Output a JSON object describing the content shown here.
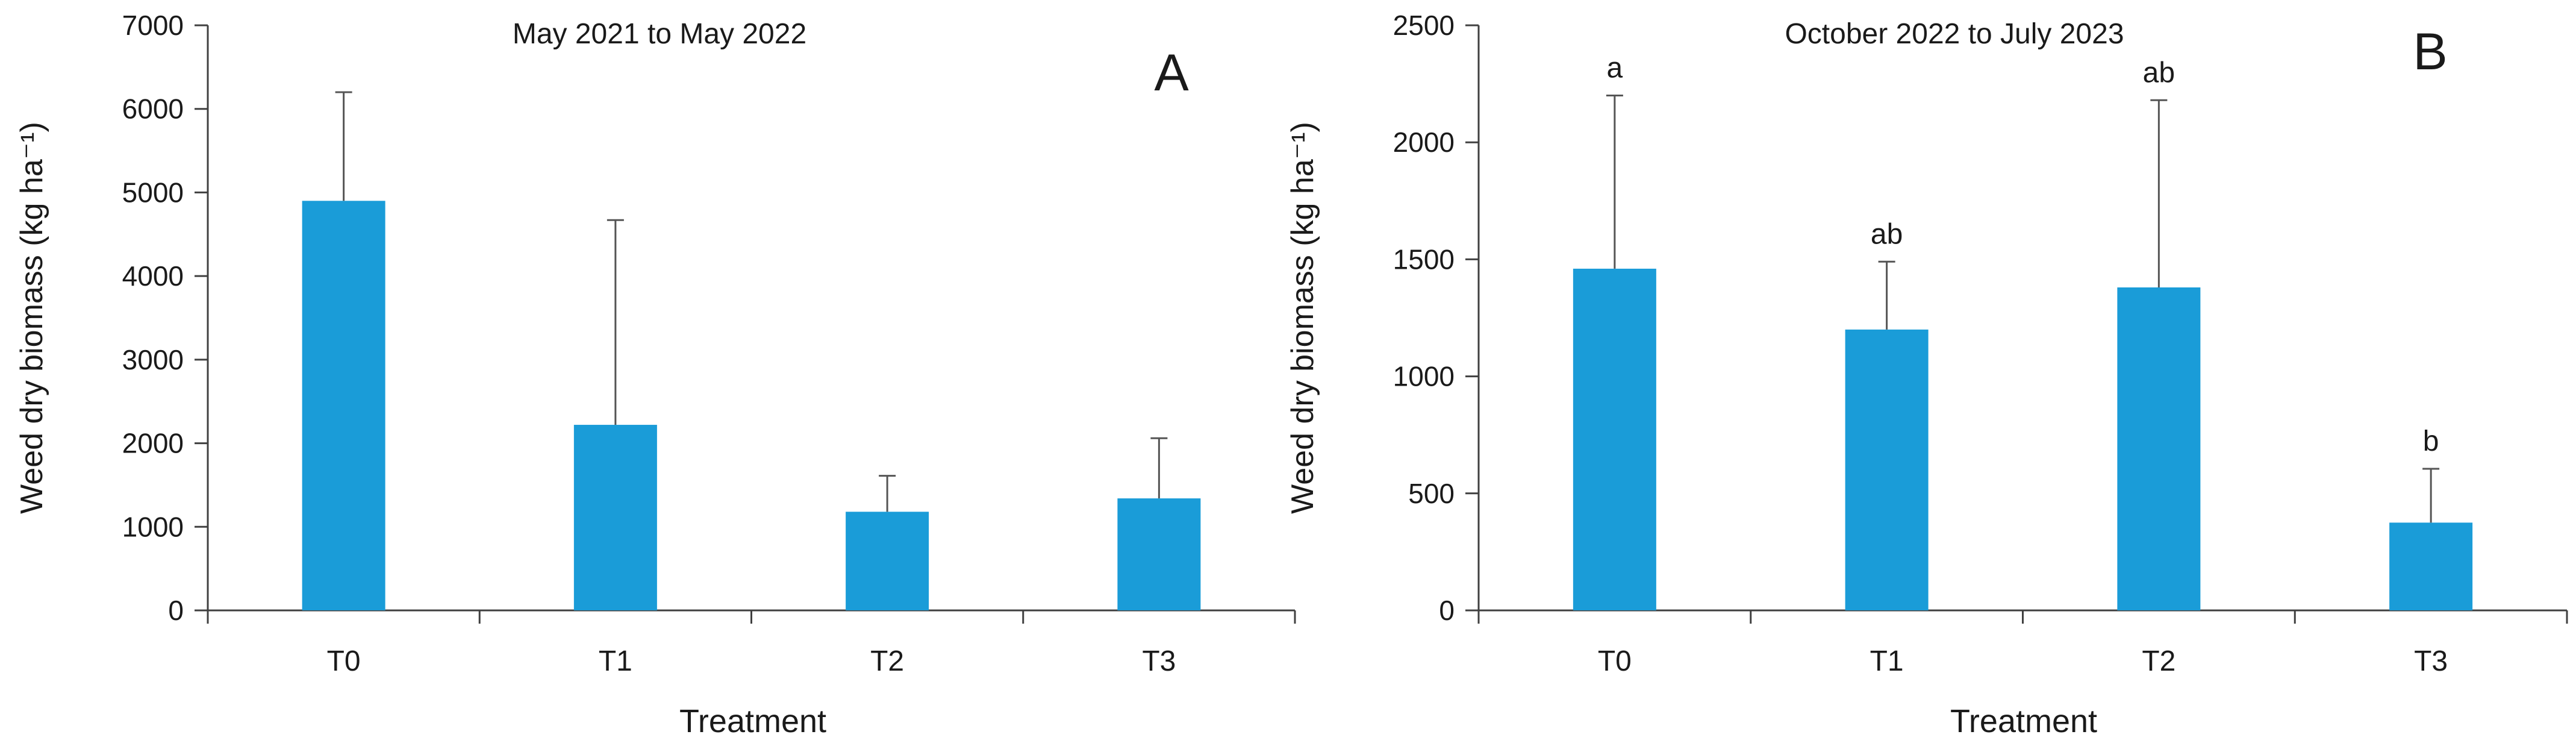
{
  "chart_data": [
    {
      "id": "A",
      "type": "bar",
      "panel_label": "A",
      "title": "May 2021  to May 2022",
      "xlabel": "Treatment",
      "ylabel": "Weed dry biomass (kg ha⁻¹)",
      "ylim": [
        0,
        7000
      ],
      "yticks": [
        0,
        1000,
        2000,
        3000,
        4000,
        5000,
        6000,
        7000
      ],
      "categories": [
        "T0",
        "T1",
        "T2",
        "T3"
      ],
      "values": [
        4900,
        2220,
        1180,
        1340
      ],
      "error_upper": [
        1300,
        2450,
        430,
        720
      ],
      "significance_letters": [
        "",
        "",
        "",
        ""
      ],
      "bar_color": "#1a9cd8",
      "grid": false,
      "legend": "none"
    },
    {
      "id": "B",
      "type": "bar",
      "panel_label": "B",
      "title": "October 2022  to July 2023",
      "xlabel": "Treatment",
      "ylabel": "Weed dry biomass (kg ha⁻¹)",
      "ylim": [
        0,
        2500
      ],
      "yticks": [
        0,
        500,
        1000,
        1500,
        2000,
        2500
      ],
      "categories": [
        "T0",
        "T1",
        "T2",
        "T3"
      ],
      "values": [
        1460,
        1200,
        1380,
        375
      ],
      "error_upper": [
        740,
        290,
        800,
        230
      ],
      "significance_letters": [
        "a",
        "ab",
        "ab",
        "b"
      ],
      "bar_color": "#1a9cd8",
      "grid": false,
      "legend": "none"
    }
  ]
}
